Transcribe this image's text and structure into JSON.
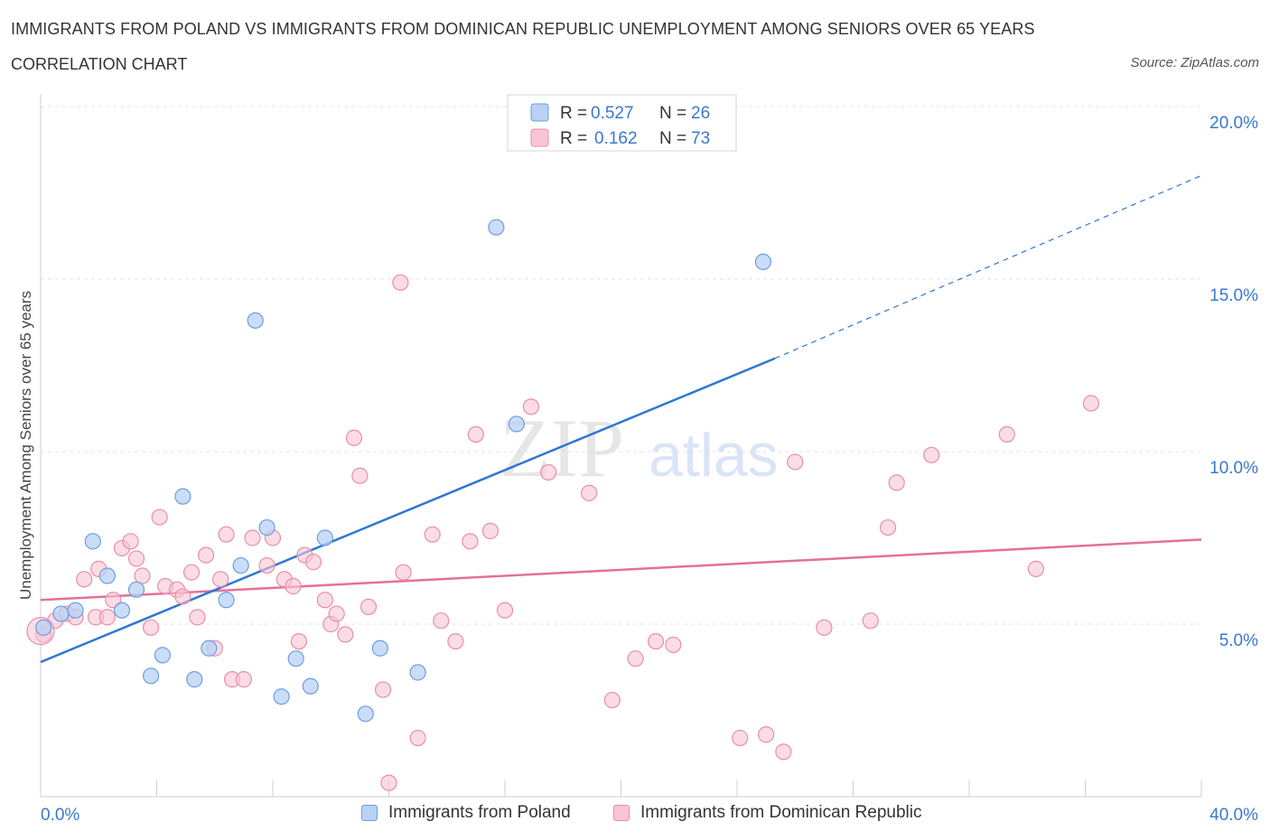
{
  "title": "IMMIGRANTS FROM POLAND VS IMMIGRANTS FROM DOMINICAN REPUBLIC UNEMPLOYMENT AMONG SENIORS OVER 65 YEARS",
  "subtitle": "CORRELATION CHART",
  "source": "Source: ZipAtlas.com",
  "watermark": {
    "zip": "ZIP",
    "atlas": "atlas"
  },
  "chart_data": {
    "type": "scatter",
    "xlabel": "",
    "ylabel": "Unemployment Among Seniors over 65 years",
    "xlim": [
      0,
      40
    ],
    "ylim": [
      0,
      20
    ],
    "x_tick_labels": [
      "0.0%",
      "40.0%"
    ],
    "y_ticks": [
      5,
      10,
      15,
      20
    ],
    "y_tick_labels": [
      "5.0%",
      "10.0%",
      "15.0%",
      "20.0%"
    ],
    "grid": true,
    "legend_placement": "top-center",
    "colors": {
      "poland_fill": "#b8d1f5",
      "poland_stroke": "#6d9de0",
      "poland_line": "#2e76d2",
      "dominican_fill": "#f8c5d4",
      "dominican_stroke": "#e88ea9",
      "dominican_line": "#e4709a",
      "value_text": "#3a78cc"
    },
    "stats": [
      {
        "r_label": "R =",
        "r_value": "0.527",
        "n_label": "N =",
        "n_value": "26"
      },
      {
        "r_label": "R =",
        "r_value": "0.162",
        "n_label": "N =",
        "n_value": "73"
      }
    ],
    "series": [
      {
        "name": "Immigrants from Poland",
        "trend": {
          "x0": 0,
          "y0": 3.9,
          "x1": 25.3,
          "y1": 12.7,
          "dash_to_x": 40,
          "dash_to_y": 18.0
        },
        "points": [
          [
            0.1,
            4.9
          ],
          [
            0.7,
            5.3
          ],
          [
            1.2,
            5.4
          ],
          [
            1.8,
            7.4
          ],
          [
            2.3,
            6.4
          ],
          [
            2.8,
            5.4
          ],
          [
            3.3,
            6.0
          ],
          [
            3.8,
            3.5
          ],
          [
            4.2,
            4.1
          ],
          [
            4.9,
            8.7
          ],
          [
            5.3,
            3.4
          ],
          [
            5.8,
            4.3
          ],
          [
            6.4,
            5.7
          ],
          [
            6.9,
            6.7
          ],
          [
            7.4,
            13.8
          ],
          [
            7.8,
            7.8
          ],
          [
            8.3,
            2.9
          ],
          [
            8.8,
            4.0
          ],
          [
            9.3,
            3.2
          ],
          [
            9.8,
            7.5
          ],
          [
            11.2,
            2.4
          ],
          [
            11.7,
            4.3
          ],
          [
            13.0,
            3.6
          ],
          [
            15.7,
            16.5
          ],
          [
            16.4,
            10.8
          ],
          [
            24.9,
            15.5
          ]
        ]
      },
      {
        "name": "Immigrants from Dominican Republic",
        "trend": {
          "x0": 0,
          "y0": 5.7,
          "x1": 40,
          "y1": 7.45
        },
        "points": [
          [
            0.1,
            4.7
          ],
          [
            0.5,
            5.1
          ],
          [
            0.9,
            5.3
          ],
          [
            1.2,
            5.2
          ],
          [
            1.5,
            6.3
          ],
          [
            1.9,
            5.2
          ],
          [
            2.0,
            6.6
          ],
          [
            2.3,
            5.2
          ],
          [
            2.5,
            5.7
          ],
          [
            2.8,
            7.2
          ],
          [
            3.1,
            7.4
          ],
          [
            3.3,
            6.9
          ],
          [
            3.5,
            6.4
          ],
          [
            3.8,
            4.9
          ],
          [
            4.1,
            8.1
          ],
          [
            4.3,
            6.1
          ],
          [
            4.7,
            6.0
          ],
          [
            4.9,
            5.8
          ],
          [
            5.2,
            6.5
          ],
          [
            5.4,
            5.2
          ],
          [
            5.7,
            7.0
          ],
          [
            6.0,
            4.3
          ],
          [
            6.2,
            6.3
          ],
          [
            6.4,
            7.6
          ],
          [
            6.6,
            3.4
          ],
          [
            7.0,
            3.4
          ],
          [
            7.3,
            7.5
          ],
          [
            7.8,
            6.7
          ],
          [
            8.0,
            7.5
          ],
          [
            8.4,
            6.3
          ],
          [
            8.7,
            6.1
          ],
          [
            8.9,
            4.5
          ],
          [
            9.1,
            7.0
          ],
          [
            9.4,
            6.8
          ],
          [
            9.8,
            5.7
          ],
          [
            10.0,
            5.0
          ],
          [
            10.2,
            5.3
          ],
          [
            10.5,
            4.7
          ],
          [
            10.8,
            10.4
          ],
          [
            11.0,
            9.3
          ],
          [
            11.3,
            5.5
          ],
          [
            11.8,
            3.1
          ],
          [
            12.0,
            0.4
          ],
          [
            12.4,
            14.9
          ],
          [
            12.5,
            6.5
          ],
          [
            13.0,
            1.7
          ],
          [
            13.5,
            7.6
          ],
          [
            13.8,
            5.1
          ],
          [
            14.3,
            4.5
          ],
          [
            14.8,
            7.4
          ],
          [
            15.0,
            10.5
          ],
          [
            15.5,
            7.7
          ],
          [
            16.0,
            5.4
          ],
          [
            16.9,
            11.3
          ],
          [
            17.5,
            9.4
          ],
          [
            18.9,
            8.8
          ],
          [
            19.7,
            2.8
          ],
          [
            20.5,
            4.0
          ],
          [
            21.2,
            4.5
          ],
          [
            21.8,
            4.4
          ],
          [
            24.1,
            1.7
          ],
          [
            25.0,
            1.8
          ],
          [
            25.6,
            1.3
          ],
          [
            26.0,
            9.7
          ],
          [
            27.0,
            4.9
          ],
          [
            28.6,
            5.1
          ],
          [
            29.2,
            7.8
          ],
          [
            29.5,
            9.1
          ],
          [
            30.7,
            9.9
          ],
          [
            33.3,
            10.5
          ],
          [
            34.3,
            6.6
          ],
          [
            36.2,
            11.4
          ],
          [
            0.0,
            4.8
          ]
        ]
      }
    ]
  }
}
